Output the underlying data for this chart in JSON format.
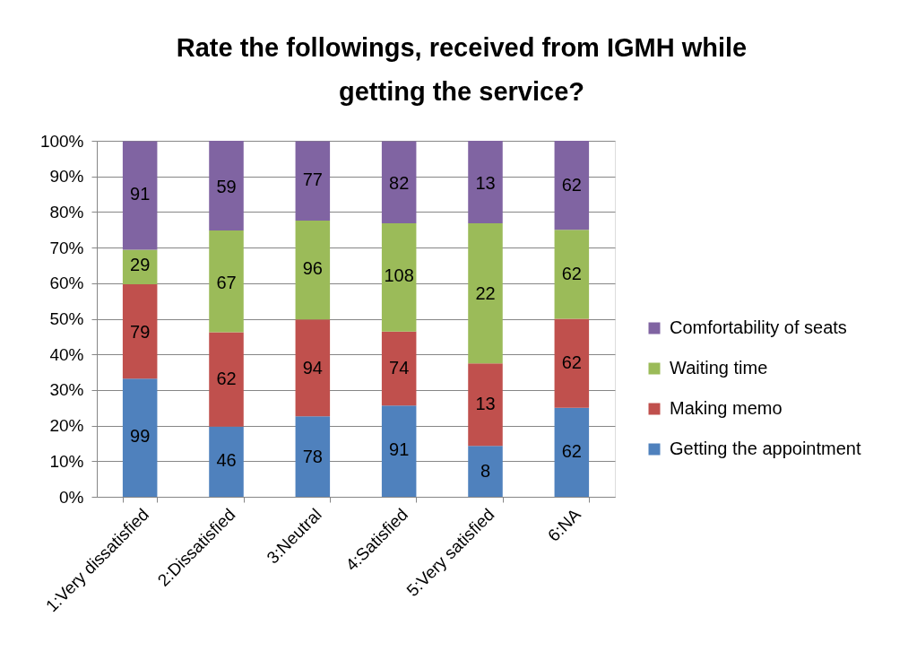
{
  "chart_data": {
    "type": "bar",
    "title": "Rate the followings, received from IGMH while getting the service?",
    "categories": [
      "1:Very dissatisfied",
      "2:Dissatisfied",
      "3:Neutral",
      "4:Satisfied",
      "5:Very satisfied",
      "6:NA"
    ],
    "stacked": true,
    "series": [
      {
        "name": "Getting the appointment",
        "color": "#4f81bd",
        "values": [
          33.2,
          19.7,
          22.6,
          25.6,
          14.3,
          25.0
        ]
      },
      {
        "name": "Making memo",
        "color": "#c0504d",
        "values": [
          26.5,
          26.5,
          27.2,
          20.8,
          23.2,
          25.0
        ]
      },
      {
        "name": "Waiting time",
        "color": "#9bbb59",
        "values": [
          9.7,
          28.6,
          27.8,
          30.4,
          39.3,
          25.0
        ]
      },
      {
        "name": "Comfortability of seats",
        "color": "#8064a2",
        "values": [
          30.5,
          25.2,
          22.3,
          23.1,
          23.2,
          25.0
        ]
      }
    ],
    "annotations": [
      {
        "text": "99",
        "x": "1:Very dissatisfied",
        "y": 17
      },
      {
        "text": "79",
        "x": "1:Very dissatisfied",
        "y": 46
      },
      {
        "text": "29",
        "x": "1:Very dissatisfied",
        "y": 65
      },
      {
        "text": "91",
        "x": "1:Very dissatisfied",
        "y": 85
      },
      {
        "text": "46",
        "x": "2:Dissatisfied",
        "y": 10
      },
      {
        "text": "62",
        "x": "2:Dissatisfied",
        "y": 33
      },
      {
        "text": "67",
        "x": "2:Dissatisfied",
        "y": 60
      },
      {
        "text": "59",
        "x": "2:Dissatisfied",
        "y": 87
      },
      {
        "text": "78",
        "x": "3:Neutral",
        "y": 11
      },
      {
        "text": "94",
        "x": "3:Neutral",
        "y": 36
      },
      {
        "text": "96",
        "x": "3:Neutral",
        "y": 64
      },
      {
        "text": "77",
        "x": "3:Neutral",
        "y": 89
      },
      {
        "text": "91",
        "x": "4:Satisfied",
        "y": 13
      },
      {
        "text": "74",
        "x": "4:Satisfied",
        "y": 36
      },
      {
        "text": "108",
        "x": "4:Satisfied",
        "y": 62
      },
      {
        "text": "82",
        "x": "4:Satisfied",
        "y": 88
      },
      {
        "text": "8",
        "x": "5:Very satisfied",
        "y": 7
      },
      {
        "text": "13",
        "x": "5:Very satisfied",
        "y": 26
      },
      {
        "text": "22",
        "x": "5:Very satisfied",
        "y": 57
      },
      {
        "text": "13",
        "x": "5:Very satisfied",
        "y": 88
      },
      {
        "text": "62",
        "x": "6:NA",
        "y": 12.5
      },
      {
        "text": "62",
        "x": "6:NA",
        "y": 37.5
      },
      {
        "text": "62",
        "x": "6:NA",
        "y": 62.5
      },
      {
        "text": "62",
        "x": "6:NA",
        "y": 87.5
      }
    ],
    "ylim": [
      0,
      100
    ],
    "yticks": [
      {
        "value": 0,
        "label": "0%"
      },
      {
        "value": 10,
        "label": "10%"
      },
      {
        "value": 20,
        "label": "20%"
      },
      {
        "value": 30,
        "label": "30%"
      },
      {
        "value": 40,
        "label": "40%"
      },
      {
        "value": 50,
        "label": "50%"
      },
      {
        "value": 60,
        "label": "60%"
      },
      {
        "value": 70,
        "label": "70%"
      },
      {
        "value": 80,
        "label": "80%"
      },
      {
        "value": 90,
        "label": "90%"
      },
      {
        "value": 100,
        "label": "100%"
      }
    ],
    "grid": "y",
    "legend": "right"
  }
}
